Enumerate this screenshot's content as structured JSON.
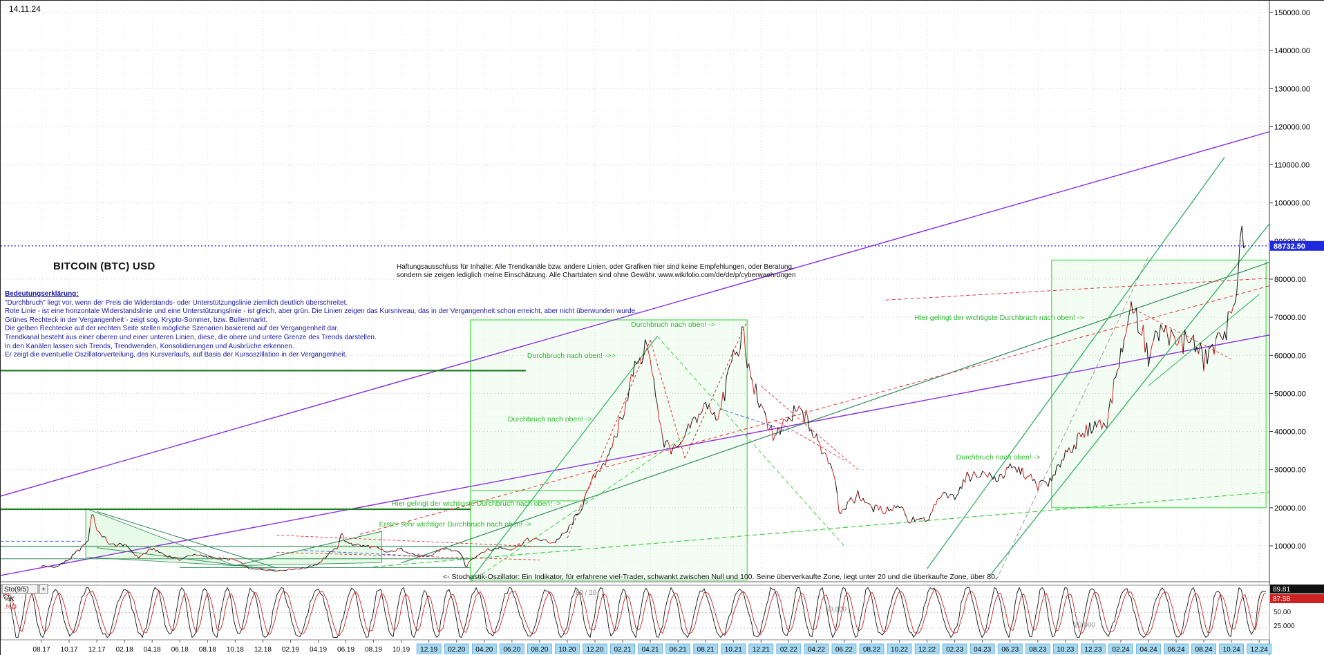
{
  "meta": {
    "date_label": "14.11.24",
    "title": "BITCOIN (BTC) USD"
  },
  "disclaimer": {
    "line1": "Haftungsausschluss für Inhalte: Alle Trendkanäle bzw. andere Linien, oder Grafiken hier sind keine Empfehlungen, oder Beratung,",
    "line2": "sondern sie zeigen lediglich meine Einschätzung. Alle Chartdaten sind ohne Gewähr.  www.wikifolio.com/de/de/p/cyberwaehrungen"
  },
  "legend": {
    "heading": "Bedeutungserklärung:",
    "lines": [
      "\"Durchbruch\" liegt vor, wenn der Preis die Widerstands- oder Unterstützungslinie ziemlich deutlich überschreitet.",
      "Rote Linie - ist eine horizontale Widerstandslinie und eine Unterstützungslinie - ist gleich, aber grün. Die Linien zeigen das Kursniveau, das in der Vergangenheit schon erreicht, aber nicht überwunden wurde.",
      "Grünes Rechteck in der Vergangenheit - zeigt sog. Krypto-Sommer, bzw. Bullenmarkt.",
      "Die gelben Rechtecke auf der rechten Seite stellen mögliche Szenarien basierend auf der Vergangenheit dar.",
      "Trendkanal besteht aus einer oberen und einer unteren Linien, diese, die obere und untere Grenze des Trends darstellen.",
      "In den Kanälen lassen sich Trends, Trendwenden, Konsolidierungen und Ausbrüche erkennen.",
      "Er zeigt die eventuelle Oszillatorverteilung, des Kursverlaufs, auf Basis der Kursoszillation in der Vergangenheit."
    ]
  },
  "colors": {
    "price": "#111111",
    "price_alt": "#cc2222",
    "current_bg": "#1f2ae0",
    "current_fg": "#ffffff",
    "axis_text": "#000000",
    "grid_major": "#c8c8c8",
    "grid_minor": "#ececec",
    "vgrid": "#e0e0e0",
    "vgrid_year": "#cfcfcf",
    "highlight_bg": "#a6d9f2",
    "highlight_border": "#62a8d8",
    "annotation": "#2eb82e",
    "legend": "#1a1aa6",
    "sto_k": "#111111",
    "sto_d": "#cc2222",
    "price_dotted": "#2222ee",
    "box_stroke": "#55dd55",
    "box_fill": "rgba(150,235,150,0.10)",
    "wedge_fill": "rgba(130,225,130,0.18)",
    "wedge_stroke": "#2e8b57"
  },
  "chart_data": {
    "type": "line",
    "title": "BITCOIN (BTC) USD",
    "x_start_month": "2017-08",
    "ylim": [
      0,
      152000
    ],
    "y_ticks": [
      10000,
      20000,
      30000,
      40000,
      50000,
      60000,
      70000,
      80000,
      90000,
      100000,
      110000,
      120000,
      130000,
      140000,
      150000
    ],
    "x_tick_labels": [
      "08.17",
      "10.17",
      "12.17",
      "02.18",
      "04.18",
      "06.18",
      "08.18",
      "10.18",
      "12.18",
      "02.19",
      "04.19",
      "06.19",
      "08.19",
      "10.19",
      "12.19",
      "02.20",
      "04.20",
      "06.20",
      "08.20",
      "10.20",
      "12.20",
      "02.21",
      "04.21",
      "06.21",
      "08.21",
      "10.21",
      "12.21",
      "02.22",
      "04.22",
      "06.22",
      "08.22",
      "10.22",
      "12.22",
      "02.23",
      "04.23",
      "06.23",
      "08.23",
      "10.23",
      "12.23",
      "02.24",
      "04.24",
      "06.24",
      "08.24",
      "10.24",
      "12.24"
    ],
    "highlight_from_index": 14,
    "closes": [
      4735,
      4360,
      6450,
      9900,
      14150,
      10200,
      10300,
      6950,
      9240,
      7500,
      6400,
      7750,
      7010,
      6600,
      6300,
      4020,
      3740,
      3440,
      3815,
      4100,
      5320,
      8560,
      10800,
      10080,
      9600,
      8290,
      9150,
      7550,
      7190,
      9350,
      8530,
      6440,
      8620,
      9450,
      9140,
      11350,
      11650,
      10780,
      13800,
      19700,
      29000,
      33100,
      45160,
      58780,
      57750,
      37330,
      35040,
      41490,
      47110,
      43790,
      61320,
      57000,
      46220,
      38480,
      43190,
      45540,
      37710,
      31790,
      19940,
      23290,
      20050,
      19420,
      20490,
      17160,
      16540,
      23130,
      23140,
      28470,
      29250,
      27220,
      30470,
      29230,
      25930,
      26960,
      34660,
      37720,
      42270,
      42580,
      61200,
      71330,
      60640,
      67530,
      62680,
      64620,
      58970,
      63330,
      70220,
      88732.5
    ],
    "extremes": [
      [
        4,
        "h",
        19890
      ],
      [
        22,
        "h",
        13850
      ],
      [
        31,
        "l",
        3860
      ],
      [
        44,
        "h",
        64850
      ],
      [
        51,
        "h",
        68990
      ],
      [
        58,
        "l",
        17600
      ],
      [
        63,
        "l",
        15480
      ],
      [
        79,
        "h",
        73790
      ],
      [
        87,
        "h",
        93400
      ]
    ],
    "current_price": 88732.5,
    "trendlines": [
      [
        -3,
        23000,
        90,
        120000,
        "#8a2be2",
        1.4,
        ""
      ],
      [
        -3,
        2200,
        90,
        66200,
        "#8a2be2",
        1.4,
        ""
      ],
      [
        26,
        5500,
        90,
        86000,
        "#2e8b57",
        1.2,
        ""
      ],
      [
        64,
        4000,
        85.5,
        112000,
        "#2eaf5e",
        1.3,
        ""
      ],
      [
        68.5,
        2000,
        89.5,
        98000,
        "#2eaf5e",
        1.3,
        ""
      ],
      [
        69,
        1000,
        80,
        86000,
        "#9a9a9a",
        1,
        "6,4"
      ],
      [
        24,
        4500,
        90,
        24500,
        "#44cc44",
        1.2,
        "7,4"
      ],
      [
        -3,
        56000,
        35,
        56000,
        "#1e7a1e",
        2.2,
        ""
      ],
      [
        -3,
        19600,
        31,
        19600,
        "#1e7a1e",
        2.2,
        ""
      ],
      [
        31,
        24500,
        39.5,
        24500,
        "#7ddc7d",
        1.6,
        ""
      ],
      [
        31,
        21800,
        39.5,
        21800,
        "#7ddc7d",
        1.6,
        ""
      ],
      [
        -3,
        9800,
        39,
        9800,
        "#2e8b57",
        1.1,
        ""
      ],
      [
        -3,
        6600,
        31,
        6600,
        "#2e8b57",
        1.1,
        ""
      ],
      [
        10,
        4300,
        31,
        4300,
        "#2e8b57",
        1,
        ""
      ],
      [
        23,
        13000,
        90,
        79500,
        "#e03030",
        1,
        "5,4"
      ],
      [
        61,
        74500,
        90,
        80500,
        "#e03030",
        1,
        "5,4"
      ],
      [
        38,
        12000,
        44,
        64000,
        "#e03030",
        1,
        "4,3"
      ],
      [
        44,
        64000,
        46.5,
        33000,
        "#e03030",
        1,
        "4,3"
      ],
      [
        46.5,
        33000,
        51,
        69000,
        "#e03030",
        1,
        "4,3"
      ],
      [
        4,
        19000,
        17,
        4200,
        "#2e8b57",
        1,
        ""
      ],
      [
        4,
        9500,
        17,
        3600,
        "#2e8b57",
        1,
        ""
      ],
      [
        14,
        4800,
        24.6,
        13800,
        "#2e8b57",
        1,
        ""
      ],
      [
        17,
        12800,
        36,
        9800,
        "#e03030",
        0.9,
        "4,3"
      ],
      [
        17,
        8300,
        36,
        6300,
        "#e03030",
        0.9,
        "4,3"
      ],
      [
        -3,
        11200,
        3,
        11200,
        "#4169e1",
        1,
        "5,3"
      ],
      [
        19,
        8800,
        28,
        7200,
        "#4169e1",
        1,
        "5,3"
      ],
      [
        49,
        46000,
        54,
        40000,
        "#4169e1",
        1,
        "5,3"
      ],
      [
        52,
        52000,
        59,
        30000,
        "#e03030",
        0.9,
        "4,3"
      ],
      [
        53,
        43000,
        58,
        32500,
        "#e03030",
        0.9,
        "4,3"
      ],
      [
        79,
        72000,
        86,
        59000,
        "#e03030",
        0.9,
        "4,3"
      ],
      [
        80,
        52000,
        88,
        76000,
        "#2eaf5e",
        1,
        ""
      ],
      [
        31,
        1000,
        44.5,
        65000,
        "#2eaf5e",
        1.2,
        ""
      ],
      [
        31,
        500,
        47,
        40000,
        "#44cc44",
        1,
        "6,4"
      ],
      [
        44.5,
        65000,
        58,
        10000,
        "#44cc44",
        1,
        "6,4"
      ]
    ],
    "boxes": [
      [
        31,
        1000,
        51,
        69300
      ],
      [
        73,
        20000,
        88.5,
        85000
      ]
    ],
    "polygons": [
      [
        [
          3.2,
          19800
        ],
        [
          14,
          4800
        ],
        [
          3.2,
          7000
        ]
      ],
      [
        [
          14,
          4800
        ],
        [
          24.6,
          13800
        ],
        [
          24.6,
          5600
        ]
      ]
    ],
    "annotations": [
      [
        42.6,
        67500,
        "Durchbruch nach oben! ->"
      ],
      [
        35.1,
        59300,
        "Durchbruch nach oben! ->>"
      ],
      [
        33.7,
        42600,
        "Durchbruch nach oben! ->"
      ],
      [
        63.1,
        69300,
        "Hier gelingt der wichtigste Durchbruch nach oben! ->"
      ],
      [
        66.1,
        32650,
        "Durchbruch nach oben! ->"
      ],
      [
        25.3,
        20500,
        "Hier gelingt der wichtigste Durchbruch nach oben! ->"
      ],
      [
        24.4,
        15050,
        "Erster sehr wichtiger Durchbruch nach oben! ->"
      ]
    ],
    "stochastic": {
      "label": "Sto(9/5)",
      "expand_label": "+",
      "k_label": "%K",
      "d_label": ".%D",
      "k_value": 89.81,
      "d_value": 87.58,
      "levels": [
        80,
        50,
        20
      ],
      "right_static_labels": [
        "50.00",
        "25.000"
      ],
      "panel_labels": [
        {
          "text": "80 / 20",
          "xf": 0.453,
          "v": 84
        },
        {
          "text": "50.000",
          "xf": 0.65,
          "v": 52
        },
        {
          "text": "20.000",
          "xf": 0.846,
          "v": 22
        }
      ],
      "note": "<- Stochastik-Oszillator: Ein Indikator, für erfahrene viel-Trader, schwankt zwischen Null und 100. Seine überverkaufte Zone, liegt unter 20 und die überkaufte Zone, über 80."
    }
  }
}
